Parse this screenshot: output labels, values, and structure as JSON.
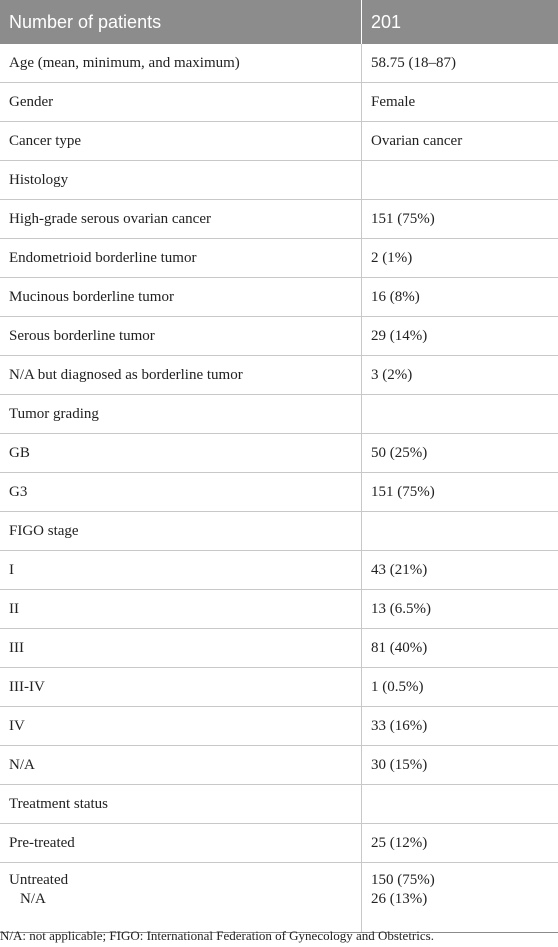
{
  "header": {
    "label": "Number of patients",
    "value": "201"
  },
  "rows": [
    {
      "label": "Age (mean, minimum, and maximum)",
      "value": "58.75 (18–87)"
    },
    {
      "label": "Gender",
      "value": "Female"
    },
    {
      "label": "Cancer type",
      "value": "Ovarian cancer"
    },
    {
      "label": "Histology",
      "value": ""
    },
    {
      "label": "High-grade serous ovarian cancer",
      "value": "151 (75%)"
    },
    {
      "label": "Endometrioid borderline tumor",
      "value": "2 (1%)"
    },
    {
      "label": "Mucinous borderline tumor",
      "value": "16 (8%)"
    },
    {
      "label": "Serous borderline tumor",
      "value": "29 (14%)"
    },
    {
      "label": "N/A but diagnosed as borderline tumor",
      "value": "3 (2%)"
    },
    {
      "label": "Tumor grading",
      "value": ""
    },
    {
      "label": "GB",
      "value": "50 (25%)"
    },
    {
      "label": "G3",
      "value": "151 (75%)"
    },
    {
      "label": "FIGO stage",
      "value": ""
    },
    {
      "label": "I",
      "value": "43 (21%)"
    },
    {
      "label": "II",
      "value": "13 (6.5%)"
    },
    {
      "label": "III",
      "value": "81 (40%)"
    },
    {
      "label": "III-IV",
      "value": "1 (0.5%)"
    },
    {
      "label": "IV",
      "value": "33 (16%)"
    },
    {
      "label": "N/A",
      "value": "30 (15%)"
    },
    {
      "label": "Treatment status",
      "value": ""
    },
    {
      "label": "Pre-treated",
      "value": "25 (12%)"
    }
  ],
  "last_row": {
    "label": "Untreated",
    "value": "150 (75%)",
    "sub_label": "N/A",
    "sub_value": "26 (13%)"
  },
  "footnote": "N/A: not applicable; FIGO: International Federation of Gynecology and Obstetrics."
}
